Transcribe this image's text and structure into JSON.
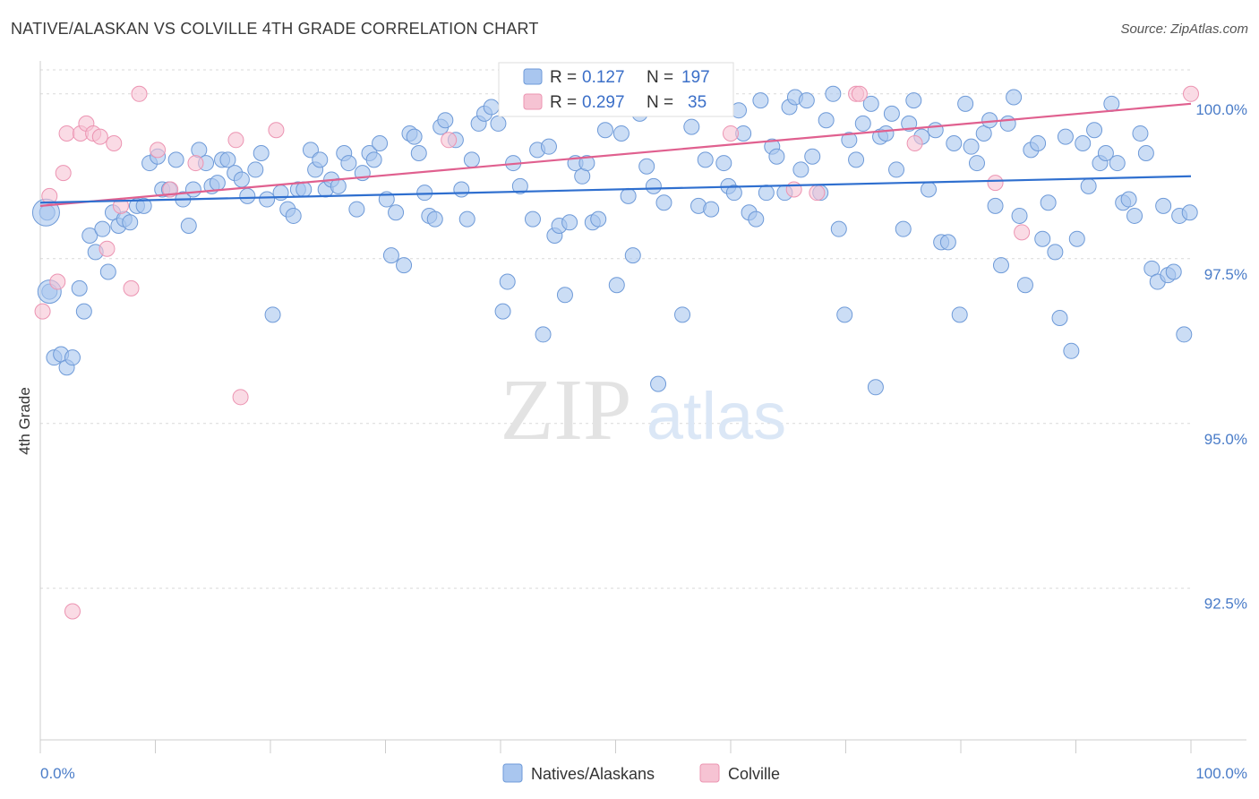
{
  "header": {
    "title": "NATIVE/ALASKAN VS COLVILLE 4TH GRADE CORRELATION CHART",
    "source": "Source: ZipAtlas.com"
  },
  "watermark": {
    "zip": "ZIP",
    "atlas": "atlas"
  },
  "colors": {
    "natives_fill": "#a9c6ef",
    "natives_stroke": "#6e9ad8",
    "natives_line": "#2f6fcf",
    "colville_fill": "#f6c3d3",
    "colville_stroke": "#ec94b2",
    "colville_line": "#e0608f",
    "axis_text": "#4a7cc8",
    "grid": "#d9d9d9"
  },
  "legend": {
    "rows": [
      {
        "r_label": "R =",
        "r_value": "0.127",
        "n_label": "N =",
        "n_value": "197"
      },
      {
        "r_label": "R =",
        "r_value": "0.297",
        "n_label": "N =",
        "n_value": "35"
      }
    ]
  },
  "chart_data": {
    "type": "scatter",
    "title": "NATIVE/ALASKAN VS COLVILLE 4TH GRADE CORRELATION CHART",
    "xlabel": "",
    "ylabel": "4th Grade",
    "xlim": [
      0,
      100
    ],
    "ylim": [
      90.2,
      100.5
    ],
    "x_tick_labels": [
      "0.0%",
      "100.0%"
    ],
    "y_ticks": [
      92.5,
      95.0,
      97.5,
      100.0
    ],
    "y_tick_labels": [
      "92.5%",
      "95.0%",
      "97.5%",
      "100.0%"
    ],
    "grid": true,
    "legend_position": "top-center",
    "series": [
      {
        "name": "Natives/Alaskans",
        "r": 0.127,
        "n": 197,
        "trend": {
          "x": [
            0,
            100
          ],
          "y": [
            98.35,
            98.75
          ]
        },
        "points": [
          [
            0.6,
            98.2
          ],
          [
            0.8,
            97.0
          ],
          [
            1.2,
            96.0
          ],
          [
            1.8,
            96.05
          ],
          [
            2.3,
            95.85
          ],
          [
            2.8,
            96.0
          ],
          [
            3.4,
            97.05
          ],
          [
            3.8,
            96.7
          ],
          [
            4.3,
            97.85
          ],
          [
            4.8,
            97.6
          ],
          [
            5.4,
            97.95
          ],
          [
            5.9,
            97.3
          ],
          [
            6.3,
            98.2
          ],
          [
            6.8,
            98.0
          ],
          [
            7.3,
            98.1
          ],
          [
            7.8,
            98.05
          ],
          [
            8.4,
            98.3
          ],
          [
            9.0,
            98.3
          ],
          [
            9.5,
            98.95
          ],
          [
            10.2,
            99.05
          ],
          [
            10.6,
            98.55
          ],
          [
            11.2,
            98.55
          ],
          [
            11.8,
            99.0
          ],
          [
            12.4,
            98.4
          ],
          [
            12.9,
            98.0
          ],
          [
            13.3,
            98.55
          ],
          [
            13.8,
            99.15
          ],
          [
            14.4,
            98.95
          ],
          [
            14.9,
            98.6
          ],
          [
            15.4,
            98.65
          ],
          [
            15.8,
            99.0
          ],
          [
            16.3,
            99.0
          ],
          [
            16.9,
            98.8
          ],
          [
            17.5,
            98.7
          ],
          [
            18.0,
            98.45
          ],
          [
            18.7,
            98.85
          ],
          [
            19.2,
            99.1
          ],
          [
            19.7,
            98.4
          ],
          [
            20.2,
            96.65
          ],
          [
            20.9,
            98.5
          ],
          [
            21.5,
            98.25
          ],
          [
            22.0,
            98.15
          ],
          [
            22.4,
            98.55
          ],
          [
            22.9,
            98.55
          ],
          [
            23.5,
            99.15
          ],
          [
            23.9,
            98.85
          ],
          [
            24.3,
            99.0
          ],
          [
            24.8,
            98.55
          ],
          [
            25.3,
            98.7
          ],
          [
            25.9,
            98.6
          ],
          [
            26.4,
            99.1
          ],
          [
            26.8,
            98.95
          ],
          [
            27.5,
            98.25
          ],
          [
            28.0,
            98.8
          ],
          [
            28.6,
            99.1
          ],
          [
            29.0,
            99.0
          ],
          [
            29.5,
            99.25
          ],
          [
            30.1,
            98.4
          ],
          [
            30.5,
            97.55
          ],
          [
            30.9,
            98.2
          ],
          [
            31.6,
            97.4
          ],
          [
            32.1,
            99.4
          ],
          [
            32.5,
            99.35
          ],
          [
            32.9,
            99.1
          ],
          [
            33.4,
            98.5
          ],
          [
            33.8,
            98.15
          ],
          [
            34.3,
            98.1
          ],
          [
            34.8,
            99.5
          ],
          [
            35.2,
            99.6
          ],
          [
            36.1,
            99.3
          ],
          [
            36.6,
            98.55
          ],
          [
            37.1,
            98.1
          ],
          [
            37.5,
            99.0
          ],
          [
            38.1,
            99.55
          ],
          [
            38.6,
            99.7
          ],
          [
            39.2,
            99.8
          ],
          [
            39.8,
            99.55
          ],
          [
            40.2,
            96.7
          ],
          [
            40.6,
            97.15
          ],
          [
            41.1,
            98.95
          ],
          [
            41.7,
            98.6
          ],
          [
            42.2,
            99.8
          ],
          [
            42.8,
            98.1
          ],
          [
            43.2,
            99.15
          ],
          [
            43.7,
            96.35
          ],
          [
            44.2,
            99.2
          ],
          [
            44.7,
            97.85
          ],
          [
            45.1,
            98.0
          ],
          [
            45.6,
            96.95
          ],
          [
            46.0,
            98.05
          ],
          [
            46.5,
            98.95
          ],
          [
            47.1,
            98.75
          ],
          [
            47.5,
            98.95
          ],
          [
            48.0,
            98.05
          ],
          [
            48.5,
            98.1
          ],
          [
            49.1,
            99.45
          ],
          [
            49.6,
            99.85
          ],
          [
            50.1,
            97.1
          ],
          [
            50.5,
            99.4
          ],
          [
            51.1,
            98.45
          ],
          [
            51.5,
            97.55
          ],
          [
            52.1,
            99.7
          ],
          [
            52.7,
            98.9
          ],
          [
            53.3,
            98.6
          ],
          [
            53.7,
            95.6
          ],
          [
            54.2,
            98.35
          ],
          [
            54.9,
            99.8
          ],
          [
            55.4,
            99.85
          ],
          [
            55.8,
            96.65
          ],
          [
            56.6,
            99.5
          ],
          [
            57.2,
            98.3
          ],
          [
            57.8,
            99.0
          ],
          [
            58.3,
            98.25
          ],
          [
            59.0,
            99.95
          ],
          [
            59.4,
            98.95
          ],
          [
            59.8,
            98.6
          ],
          [
            60.3,
            98.5
          ],
          [
            60.7,
            99.75
          ],
          [
            61.1,
            99.4
          ],
          [
            61.6,
            98.2
          ],
          [
            62.2,
            98.1
          ],
          [
            62.6,
            99.9
          ],
          [
            63.1,
            98.5
          ],
          [
            63.6,
            99.2
          ],
          [
            64.0,
            99.05
          ],
          [
            64.7,
            98.5
          ],
          [
            65.1,
            99.8
          ],
          [
            65.6,
            99.95
          ],
          [
            66.1,
            98.85
          ],
          [
            66.6,
            99.9
          ],
          [
            67.1,
            99.05
          ],
          [
            67.8,
            98.5
          ],
          [
            68.3,
            99.6
          ],
          [
            68.9,
            100.0
          ],
          [
            69.4,
            97.95
          ],
          [
            69.9,
            96.65
          ],
          [
            70.3,
            99.3
          ],
          [
            70.9,
            99.0
          ],
          [
            71.5,
            99.55
          ],
          [
            72.2,
            99.85
          ],
          [
            72.6,
            95.55
          ],
          [
            73.0,
            99.35
          ],
          [
            73.5,
            99.4
          ],
          [
            74.0,
            99.7
          ],
          [
            74.4,
            98.85
          ],
          [
            75.0,
            97.95
          ],
          [
            75.5,
            99.55
          ],
          [
            75.9,
            99.9
          ],
          [
            76.6,
            99.35
          ],
          [
            77.2,
            98.55
          ],
          [
            77.8,
            99.45
          ],
          [
            78.3,
            97.75
          ],
          [
            78.9,
            97.75
          ],
          [
            79.4,
            99.25
          ],
          [
            79.9,
            96.65
          ],
          [
            80.4,
            99.85
          ],
          [
            80.9,
            99.2
          ],
          [
            81.4,
            98.95
          ],
          [
            82.0,
            99.4
          ],
          [
            82.5,
            99.6
          ],
          [
            83.0,
            98.3
          ],
          [
            83.5,
            97.4
          ],
          [
            84.1,
            99.55
          ],
          [
            84.6,
            99.95
          ],
          [
            85.1,
            98.15
          ],
          [
            85.6,
            97.1
          ],
          [
            86.1,
            99.15
          ],
          [
            86.7,
            99.25
          ],
          [
            87.1,
            97.8
          ],
          [
            87.6,
            98.35
          ],
          [
            88.2,
            97.6
          ],
          [
            88.6,
            96.6
          ],
          [
            89.1,
            99.35
          ],
          [
            89.6,
            96.1
          ],
          [
            90.1,
            97.8
          ],
          [
            90.6,
            99.25
          ],
          [
            91.1,
            98.6
          ],
          [
            91.6,
            99.45
          ],
          [
            92.1,
            98.95
          ],
          [
            92.6,
            99.1
          ],
          [
            93.1,
            99.85
          ],
          [
            93.6,
            98.95
          ],
          [
            94.1,
            98.35
          ],
          [
            94.6,
            98.4
          ],
          [
            95.1,
            98.15
          ],
          [
            95.6,
            99.4
          ],
          [
            96.1,
            99.1
          ],
          [
            96.6,
            97.35
          ],
          [
            97.1,
            97.15
          ],
          [
            97.6,
            98.3
          ],
          [
            98.0,
            97.25
          ],
          [
            98.5,
            97.3
          ],
          [
            99.0,
            98.15
          ],
          [
            99.4,
            96.35
          ],
          [
            99.9,
            98.2
          ]
        ]
      },
      {
        "name": "Colville",
        "r": 0.297,
        "n": 35,
        "trend": {
          "x": [
            0,
            100
          ],
          "y": [
            98.3,
            99.85
          ]
        },
        "points": [
          [
            0.2,
            96.7
          ],
          [
            0.8,
            98.45
          ],
          [
            1.5,
            97.15
          ],
          [
            2.0,
            98.8
          ],
          [
            2.3,
            99.4
          ],
          [
            2.8,
            92.15
          ],
          [
            3.5,
            99.4
          ],
          [
            4.0,
            99.55
          ],
          [
            4.6,
            99.4
          ],
          [
            5.2,
            99.35
          ],
          [
            5.8,
            97.65
          ],
          [
            6.4,
            99.25
          ],
          [
            7.0,
            98.3
          ],
          [
            7.9,
            97.05
          ],
          [
            8.6,
            100.0
          ],
          [
            10.2,
            99.15
          ],
          [
            11.3,
            98.55
          ],
          [
            13.5,
            98.95
          ],
          [
            17.0,
            99.3
          ],
          [
            17.4,
            95.4
          ],
          [
            20.5,
            99.45
          ],
          [
            35.5,
            99.3
          ],
          [
            42.0,
            100.0
          ],
          [
            45.0,
            100.0
          ],
          [
            53.0,
            100.0
          ],
          [
            55.8,
            100.0
          ],
          [
            60.0,
            99.4
          ],
          [
            65.5,
            98.55
          ],
          [
            67.5,
            98.5
          ],
          [
            70.9,
            100.0
          ],
          [
            71.2,
            100.0
          ],
          [
            76.0,
            99.25
          ],
          [
            83.0,
            98.65
          ],
          [
            85.3,
            97.9
          ],
          [
            100.0,
            100.0
          ]
        ]
      }
    ]
  }
}
